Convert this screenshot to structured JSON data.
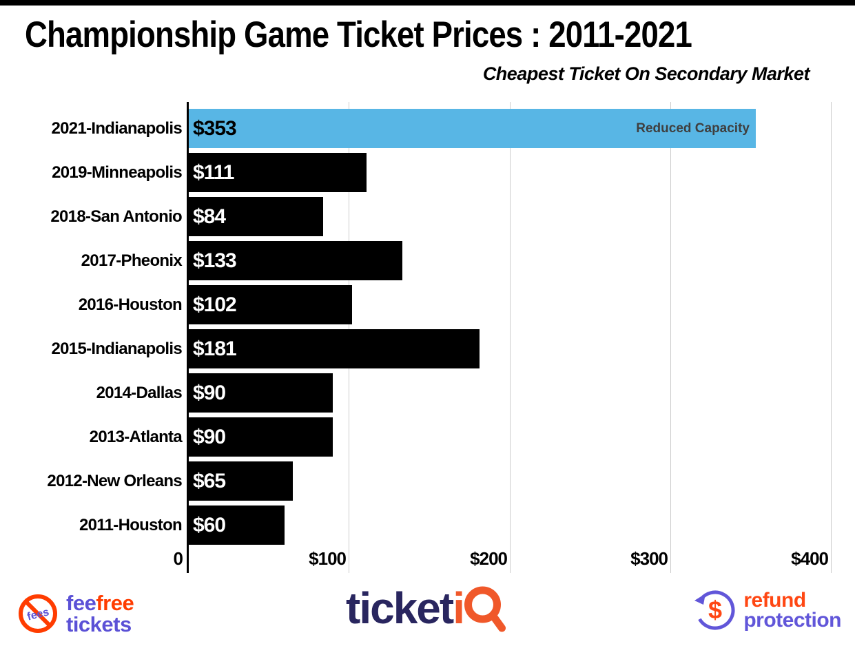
{
  "chart_data": {
    "type": "bar",
    "orientation": "horizontal",
    "title": "Championship Game Ticket Prices : 2011-2021",
    "subtitle": "Cheapest Ticket On Secondary Market",
    "xlim": [
      0,
      400
    ],
    "x_ticks": [
      "0",
      "$100",
      "$200",
      "$300",
      "$400"
    ],
    "gridlines": true,
    "categories": [
      "2021-Indianapolis",
      "2019-Minneapolis",
      "2018-San Antonio",
      "2017-Pheonix",
      "2016-Houston",
      "2015-Indianapolis",
      "2014-Dallas",
      "2013-Atlanta",
      "2012-New Orleans",
      "2011-Houston"
    ],
    "values": [
      353,
      111,
      84,
      133,
      102,
      181,
      90,
      90,
      65,
      60
    ],
    "rows": [
      {
        "label": "2021-Indianapolis",
        "value": 353,
        "value_label": "$353",
        "highlight": true,
        "annotation": "Reduced Capacity"
      },
      {
        "label": "2019-Minneapolis",
        "value": 111,
        "value_label": "$111",
        "highlight": false
      },
      {
        "label": "2018-San Antonio",
        "value": 84,
        "value_label": "$84",
        "highlight": false
      },
      {
        "label": "2017-Pheonix",
        "value": 133,
        "value_label": "$133",
        "highlight": false
      },
      {
        "label": "2016-Houston",
        "value": 102,
        "value_label": "$102",
        "highlight": false
      },
      {
        "label": "2015-Indianapolis",
        "value": 181,
        "value_label": "$181",
        "highlight": false
      },
      {
        "label": "2014-Dallas",
        "value": 90,
        "value_label": "$90",
        "highlight": false
      },
      {
        "label": "2013-Atlanta",
        "value": 90,
        "value_label": "$90",
        "highlight": false
      },
      {
        "label": "2012-New Orleans",
        "value": 65,
        "value_label": "$65",
        "highlight": false
      },
      {
        "label": "2011-Houston",
        "value": 60,
        "value_label": "$60",
        "highlight": false
      }
    ]
  },
  "footer": {
    "feefree": {
      "word1": "fee",
      "word2": "free",
      "word3": "tickets",
      "badge_text": "fees"
    },
    "ticketiq": {
      "part1": "ticket",
      "part2": "i"
    },
    "refund": {
      "line1": "refund",
      "line2": "protection",
      "icon_symbol": "$"
    }
  },
  "theme": {
    "highlight_blue": "#58B6E5",
    "bar_black": "#000000",
    "grid": "#cccccc",
    "annot": "#3f3f3f",
    "purple": "#5B51D6",
    "orange_red": "#FF3C00",
    "navy": "#29265F",
    "tiq_orange": "#F0582A",
    "refund_orange": "#FF4713",
    "refund_purple": "#6156D9"
  }
}
